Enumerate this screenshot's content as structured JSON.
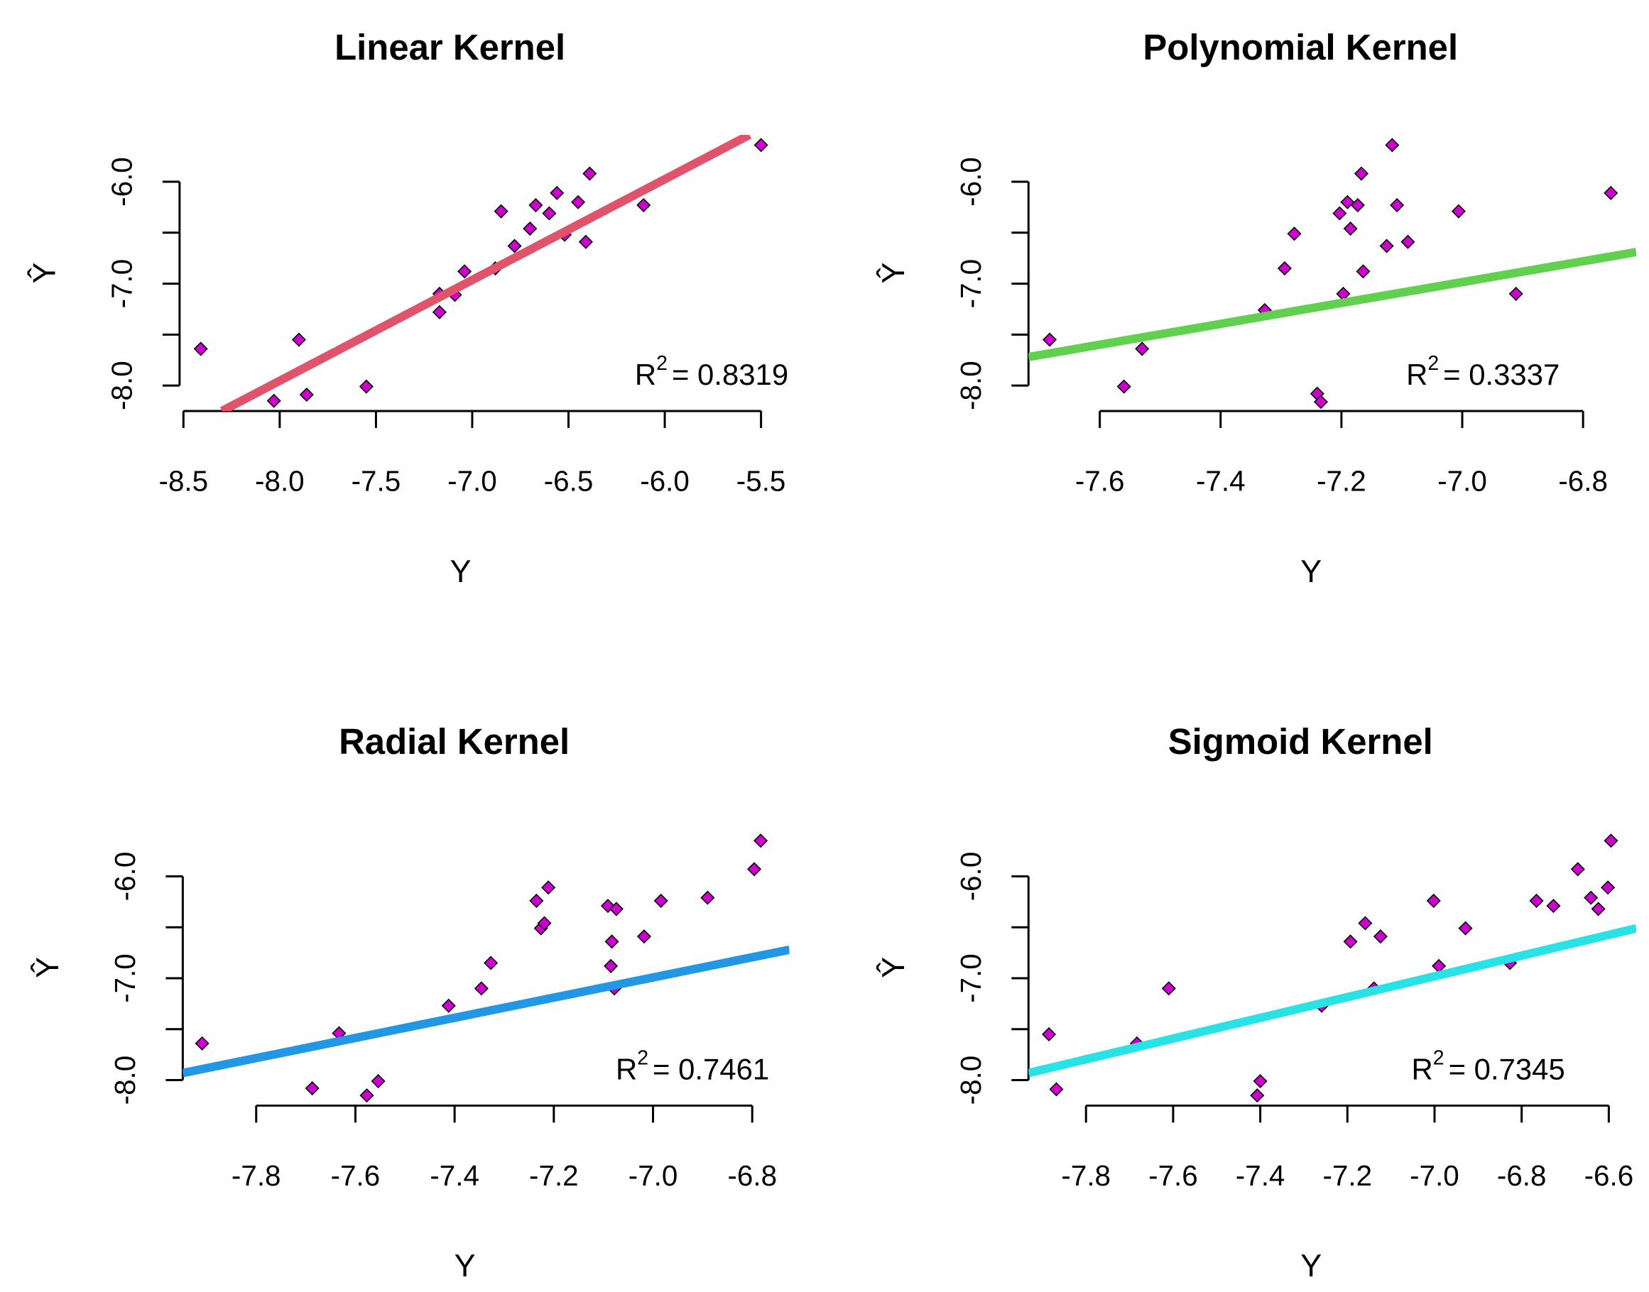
{
  "chart_data": [
    {
      "type": "scatter",
      "title": "Linear Kernel",
      "xlabel": "Y",
      "ylabel": "Ŷ",
      "annotation": [
        "R",
        "2",
        "= 0.8319"
      ],
      "color": "#cc00cc",
      "x": [
        -8.41,
        -8.03,
        -7.9,
        -7.86,
        -7.55,
        -7.17,
        -7.17,
        -7.09,
        -7.04,
        -6.88,
        -6.85,
        -6.78,
        -6.7,
        -6.67,
        -6.6,
        -6.56,
        -6.52,
        -6.45,
        -6.41,
        -6.39,
        -6.11,
        -5.5
      ],
      "values": [
        -7.64,
        -8.15,
        -7.55,
        -8.09,
        -8.01,
        -7.1,
        -7.28,
        -7.11,
        -6.88,
        -6.85,
        -6.29,
        -6.63,
        -6.46,
        -6.23,
        -6.31,
        -6.11,
        -6.52,
        -6.2,
        -6.59,
        -5.92,
        -6.23,
        -5.64
      ],
      "fit_line": {
        "color": "#df536b",
        "x": [
          -8.3,
          -5.56
        ],
        "values": [
          -8.25,
          -5.54
        ]
      },
      "xlim": [
        -8.52,
        -5.38
      ],
      "ylim": [
        -8.25,
        -5.54
      ],
      "xticks": [
        -8.5,
        {
          "value": -8,
          "label": "-8.0"
        },
        -7.5,
        {
          "value": -7,
          "label": "-7.0"
        },
        -6.5,
        {
          "value": -6,
          "label": "-6.0"
        },
        -5.5
      ],
      "yticks": [
        {
          "value": -6,
          "label": "-6.0"
        },
        {
          "value": -7,
          "label": "-7.0"
        },
        {
          "value": -8,
          "label": "-8.0"
        }
      ],
      "yminor_ticks": [
        -6.5,
        -7.5
      ]
    },
    {
      "type": "scatter",
      "title": "Polynomial Kernel",
      "xlabel": "Y",
      "ylabel": "Ŷ",
      "annotation": [
        "R",
        "2",
        "= 0.3337"
      ],
      "color": "#cc00cc",
      "x": [
        -7.683,
        -7.56,
        -7.53,
        -7.327,
        -7.294,
        -7.278,
        -7.24,
        -7.234,
        -7.203,
        -7.197,
        -7.19,
        -7.185,
        -7.173,
        -7.167,
        -7.164,
        -7.125,
        -7.116,
        -7.108,
        -7.09,
        -7.006,
        -6.911,
        -6.754
      ],
      "values": [
        -7.55,
        -8.01,
        -7.64,
        -7.26,
        -6.85,
        -6.51,
        -8.08,
        -8.16,
        -6.31,
        -7.1,
        -6.2,
        -6.46,
        -6.23,
        -5.92,
        -6.88,
        -6.63,
        -5.64,
        -6.23,
        -6.59,
        -6.29,
        -7.1,
        -6.11
      ],
      "fit_line": {
        "color": "#61d04f",
        "x": [
          -7.718,
          -6.712
        ],
        "values": [
          -7.72,
          -6.69
        ]
      },
      "xlim": [
        -7.718,
        -6.712
      ],
      "ylim": [
        -8.25,
        -5.54
      ],
      "xticks": [
        -7.6,
        -7.4,
        -7.2,
        {
          "value": -7,
          "label": "-7.0"
        },
        -6.8
      ],
      "yticks": [
        {
          "value": -6,
          "label": "-6.0"
        },
        {
          "value": -7,
          "label": "-7.0"
        },
        {
          "value": -8,
          "label": "-8.0"
        }
      ],
      "yminor_ticks": [
        -6.5,
        -7.5
      ]
    },
    {
      "type": "scatter",
      "title": "Radial Kernel",
      "xlabel": "Y",
      "ylabel": "Ŷ",
      "annotation": [
        "R",
        "2",
        "= 0.7461"
      ],
      "color": "#cc00cc",
      "x": [
        -7.909,
        -7.687,
        -7.633,
        -7.577,
        -7.554,
        -7.412,
        -7.346,
        -7.327,
        -7.235,
        -7.226,
        -7.219,
        -7.211,
        -7.091,
        -7.085,
        -7.083,
        -7.078,
        -7.074,
        -7.018,
        -6.984,
        -6.89,
        -6.796,
        -6.783
      ],
      "values": [
        -7.64,
        -8.08,
        -7.54,
        -8.15,
        -8.01,
        -7.27,
        -7.1,
        -6.85,
        -6.24,
        -6.51,
        -6.46,
        -6.11,
        -6.29,
        -6.88,
        -6.64,
        -7.1,
        -6.32,
        -6.59,
        -6.24,
        -6.21,
        -5.93,
        -5.65
      ],
      "fit_line": {
        "color": "#2297e6",
        "x": [
          -7.948,
          -6.725
        ],
        "values": [
          -7.93,
          -6.72
        ]
      },
      "xlim": [
        -7.948,
        -6.725
      ],
      "ylim": [
        -8.25,
        -5.54
      ],
      "xticks": [
        -7.8,
        -7.6,
        -7.4,
        -7.2,
        {
          "value": -7,
          "label": "-7.0"
        },
        -6.8
      ],
      "yticks": [
        {
          "value": -6,
          "label": "-6.0"
        },
        {
          "value": -7,
          "label": "-7.0"
        },
        {
          "value": -8,
          "label": "-8.0"
        }
      ],
      "yminor_ticks": [
        -6.5,
        -7.5
      ]
    },
    {
      "type": "scatter",
      "title": "Sigmoid Kernel",
      "xlabel": "Y",
      "ylabel": "Ŷ",
      "annotation": [
        "R",
        "2",
        "= 0.7345"
      ],
      "color": "#cc00cc",
      "x": [
        -7.885,
        -7.868,
        -7.683,
        -7.61,
        -7.407,
        -7.4,
        -7.259,
        -7.193,
        -7.159,
        -7.139,
        -7.124,
        -7.002,
        -6.99,
        -6.929,
        -6.827,
        -6.766,
        -6.727,
        -6.671,
        -6.641,
        -6.624,
        -6.602,
        -6.595
      ],
      "values": [
        -7.55,
        -8.09,
        -7.64,
        -7.1,
        -8.15,
        -8.01,
        -7.27,
        -6.64,
        -6.46,
        -7.1,
        -6.59,
        -6.24,
        -6.88,
        -6.51,
        -6.85,
        -6.24,
        -6.29,
        -5.93,
        -6.21,
        -6.32,
        -6.11,
        -5.65
      ],
      "fit_line": {
        "color": "#28e2e5",
        "x": [
          -7.932,
          -6.537
        ],
        "values": [
          -7.93,
          -6.51
        ]
      },
      "xlim": [
        -7.932,
        -6.537
      ],
      "ylim": [
        -8.25,
        -5.54
      ],
      "xticks": [
        -7.8,
        -7.6,
        -7.4,
        -7.2,
        {
          "value": -7,
          "label": "-7.0"
        },
        -6.8,
        -6.6
      ],
      "yticks": [
        {
          "value": -6,
          "label": "-6.0"
        },
        {
          "value": -7,
          "label": "-7.0"
        },
        {
          "value": -8,
          "label": "-8.0"
        }
      ],
      "yminor_ticks": [
        -6.5,
        -7.5
      ]
    }
  ]
}
